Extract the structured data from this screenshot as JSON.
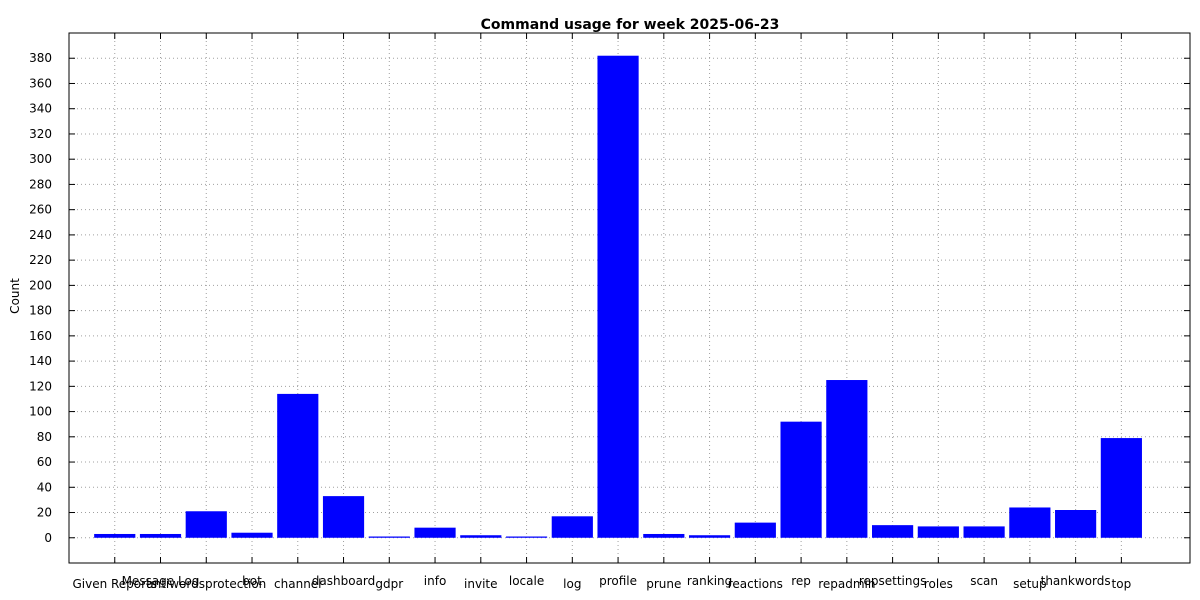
{
  "chart_data": {
    "type": "bar",
    "title": "Command usage for week 2025-06-23",
    "xlabel": "",
    "ylabel": "Count",
    "ylim": [
      -20,
      400
    ],
    "yticks": [
      0,
      20,
      40,
      60,
      80,
      100,
      120,
      140,
      160,
      180,
      200,
      220,
      240,
      260,
      280,
      300,
      320,
      340,
      360,
      380
    ],
    "grid": true,
    "legend": "none",
    "bar_color": "#0000ff",
    "categories": [
      "Given Reports",
      "Message Log",
      "antiwordsprotection",
      "bot",
      "channel",
      "dashboard",
      "gdpr",
      "info",
      "invite",
      "locale",
      "log",
      "profile",
      "prune",
      "ranking",
      "reactions",
      "rep",
      "repadmin",
      "repsettings",
      "roles",
      "scan",
      "setup",
      "thankwords",
      "top"
    ],
    "values": [
      3,
      3,
      21,
      4,
      114,
      33,
      1,
      8,
      2,
      1,
      17,
      382,
      3,
      2,
      12,
      92,
      125,
      10,
      9,
      9,
      24,
      22,
      79
    ]
  }
}
